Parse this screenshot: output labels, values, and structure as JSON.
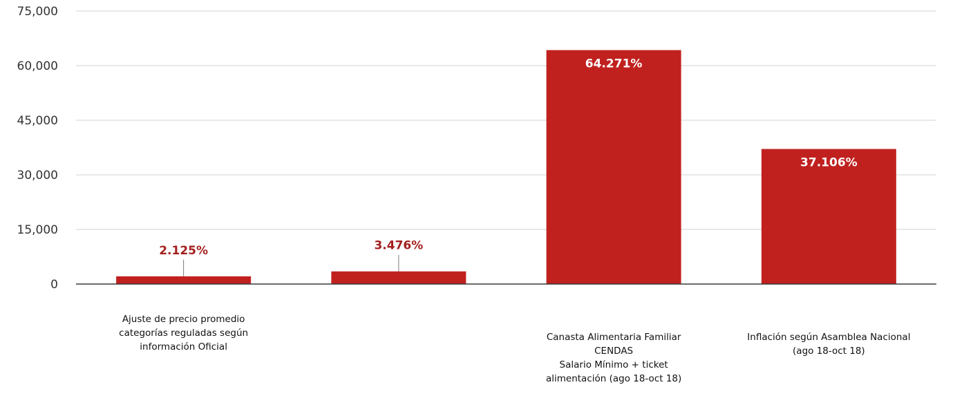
{
  "colors": {
    "bar": "#c0211f",
    "label_dark": "#a3201d",
    "label_light": "#ffffff",
    "grid": "#d0d0d0",
    "axis": "#3a3a3a"
  },
  "chart_data": {
    "type": "bar",
    "title": "",
    "xlabel": "",
    "ylabel": "",
    "ylim": [
      0,
      75000
    ],
    "yticks": [
      0,
      15000,
      30000,
      45000,
      60000,
      75000
    ],
    "ytick_labels": [
      "0",
      "15,000",
      "30,000",
      "45,000",
      "60,000",
      "75,000"
    ],
    "grid": true,
    "legend": "none",
    "categories": [
      [
        "Ajuste de precio promedio",
        "categorías reguladas según",
        "información Oficial"
      ],
      [
        "",
        "",
        "",
        ""
      ],
      [
        "Canasta Alimentaria Familiar",
        "CENDAS",
        "Salario Mínimo + ticket",
        "alimentación (ago 18-oct 18)"
      ],
      [
        "Inflación según Asamblea Nacional",
        "(ago 18-oct 18)"
      ]
    ],
    "values": [
      2125,
      3476,
      64271,
      37106
    ],
    "data_labels": [
      "2.125%",
      "3.476%",
      "64.271%",
      "37.106%"
    ]
  }
}
